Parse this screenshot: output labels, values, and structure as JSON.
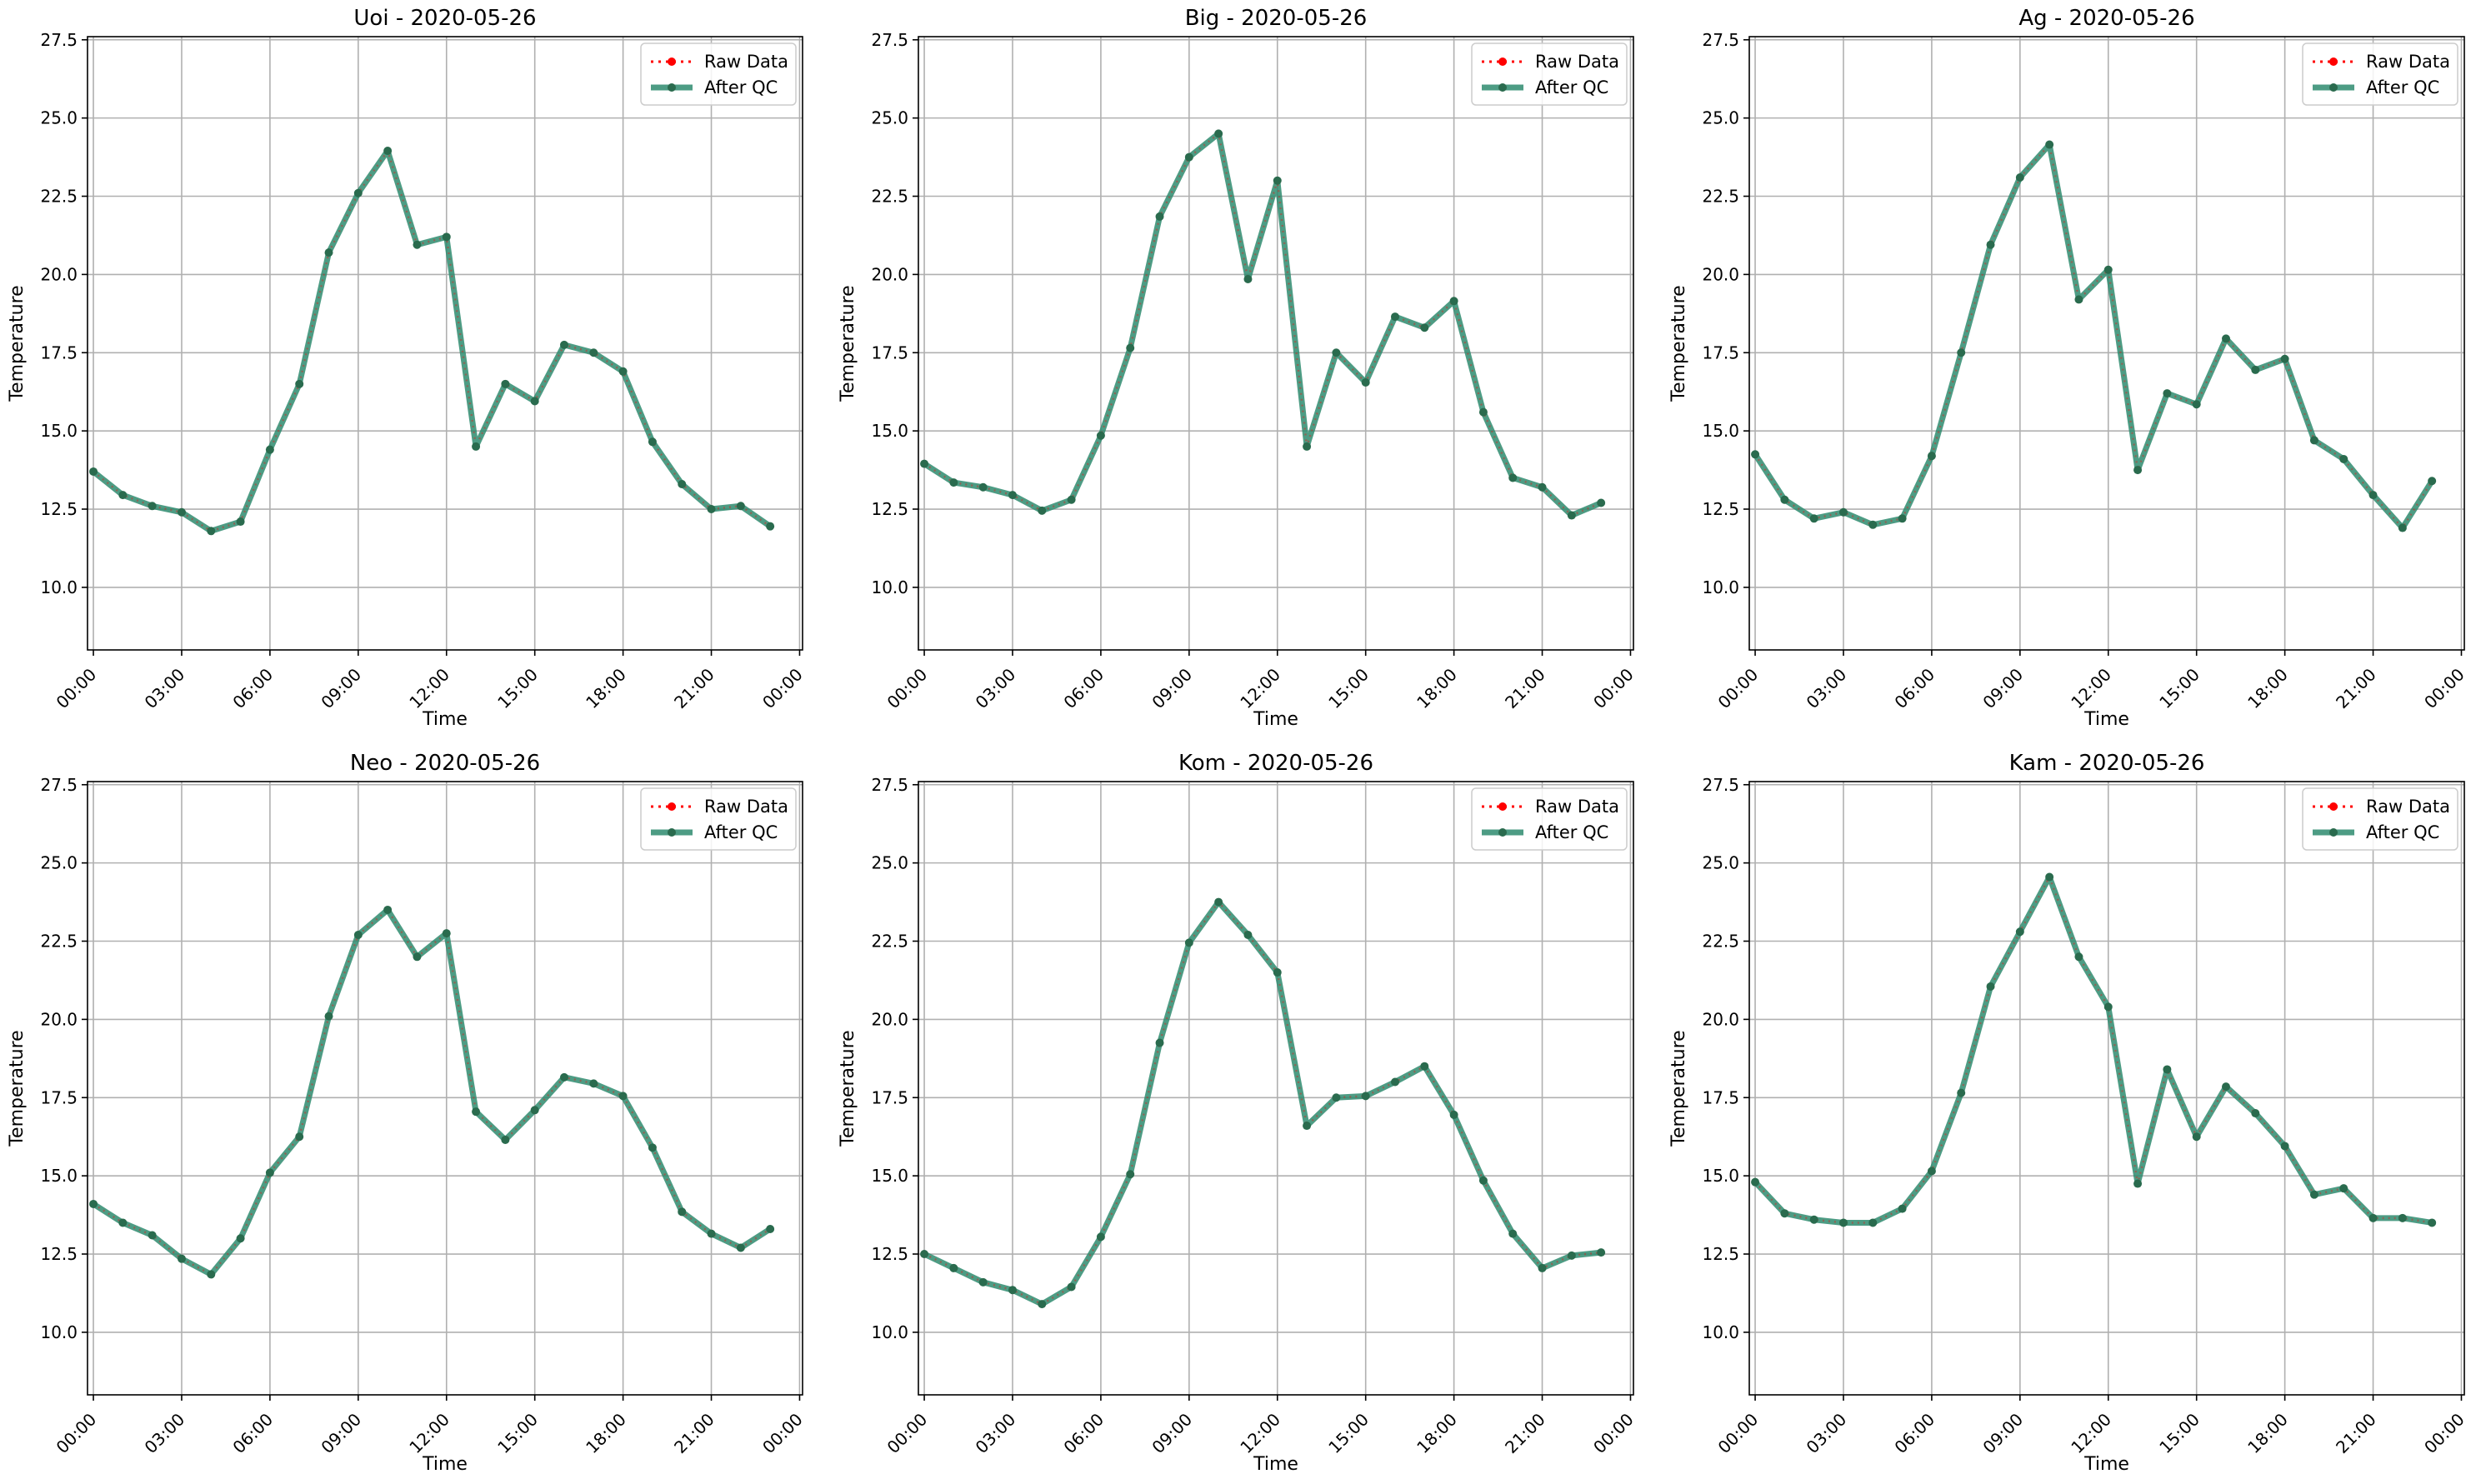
{
  "colors": {
    "raw": "#ff0000",
    "qc": "#2e8b6e",
    "qc_marker": "#2a6b4e",
    "grid": "#b0b0b0"
  },
  "chart_data": [
    {
      "type": "line",
      "title": "Uoi - 2020-05-26",
      "xlabel": "Time",
      "ylabel": "Temperature",
      "x_ticks": [
        "00:00",
        "03:00",
        "06:00",
        "09:00",
        "12:00",
        "15:00",
        "18:00",
        "21:00",
        "00:00"
      ],
      "x_tick_hours": [
        0,
        3,
        6,
        9,
        12,
        15,
        18,
        21,
        24
      ],
      "y_ticks": [
        "10.0",
        "12.5",
        "15.0",
        "17.5",
        "20.0",
        "22.5",
        "25.0",
        "27.5"
      ],
      "xlim_hours": [
        -0.2,
        24.1
      ],
      "ylim": [
        8.0,
        27.6
      ],
      "grid": true,
      "legend": "top-right",
      "x_hours": [
        0,
        1,
        2,
        3,
        4,
        5,
        6,
        7,
        8,
        9,
        10,
        11,
        12,
        13,
        14,
        15,
        16,
        17,
        18,
        19,
        20,
        21,
        22,
        23
      ],
      "series": [
        {
          "name": "Raw Data",
          "values": [
            13.7,
            12.95,
            12.6,
            12.4,
            11.8,
            12.1,
            14.4,
            16.5,
            20.7,
            22.6,
            23.95,
            20.95,
            21.2,
            14.5,
            16.5,
            15.95,
            17.75,
            17.5,
            16.9,
            14.65,
            13.3,
            12.5,
            12.6,
            11.95
          ]
        },
        {
          "name": "After QC",
          "values": [
            13.7,
            12.95,
            12.6,
            12.4,
            11.8,
            12.1,
            14.4,
            16.5,
            20.7,
            22.6,
            23.95,
            20.95,
            21.2,
            14.5,
            16.5,
            15.95,
            17.75,
            17.5,
            16.9,
            14.65,
            13.3,
            12.5,
            12.6,
            11.95
          ]
        }
      ]
    },
    {
      "type": "line",
      "title": "Big - 2020-05-26",
      "xlabel": "Time",
      "ylabel": "Temperature",
      "x_ticks": [
        "00:00",
        "03:00",
        "06:00",
        "09:00",
        "12:00",
        "15:00",
        "18:00",
        "21:00",
        "00:00"
      ],
      "x_tick_hours": [
        0,
        3,
        6,
        9,
        12,
        15,
        18,
        21,
        24
      ],
      "y_ticks": [
        "10.0",
        "12.5",
        "15.0",
        "17.5",
        "20.0",
        "22.5",
        "25.0",
        "27.5"
      ],
      "xlim_hours": [
        -0.2,
        24.1
      ],
      "ylim": [
        8.0,
        27.6
      ],
      "grid": true,
      "legend": "top-right",
      "x_hours": [
        0,
        1,
        2,
        3,
        4,
        5,
        6,
        7,
        8,
        9,
        10,
        11,
        12,
        13,
        14,
        15,
        16,
        17,
        18,
        19,
        20,
        21,
        22,
        23
      ],
      "series": [
        {
          "name": "Raw Data",
          "values": [
            13.95,
            13.35,
            13.2,
            12.95,
            12.45,
            12.8,
            14.85,
            17.65,
            21.85,
            23.75,
            24.5,
            19.85,
            23.0,
            14.5,
            17.5,
            16.55,
            18.65,
            18.3,
            19.15,
            15.6,
            13.5,
            13.2,
            12.3,
            12.7
          ]
        },
        {
          "name": "After QC",
          "values": [
            13.95,
            13.35,
            13.2,
            12.95,
            12.45,
            12.8,
            14.85,
            17.65,
            21.85,
            23.75,
            24.5,
            19.85,
            23.0,
            14.5,
            17.5,
            16.55,
            18.65,
            18.3,
            19.15,
            15.6,
            13.5,
            13.2,
            12.3,
            12.7
          ]
        }
      ]
    },
    {
      "type": "line",
      "title": "Ag - 2020-05-26",
      "xlabel": "Time",
      "ylabel": "Temperature",
      "x_ticks": [
        "00:00",
        "03:00",
        "06:00",
        "09:00",
        "12:00",
        "15:00",
        "18:00",
        "21:00",
        "00:00"
      ],
      "x_tick_hours": [
        0,
        3,
        6,
        9,
        12,
        15,
        18,
        21,
        24
      ],
      "y_ticks": [
        "10.0",
        "12.5",
        "15.0",
        "17.5",
        "20.0",
        "22.5",
        "25.0",
        "27.5"
      ],
      "xlim_hours": [
        -0.2,
        24.1
      ],
      "ylim": [
        8.0,
        27.6
      ],
      "grid": true,
      "legend": "top-right",
      "x_hours": [
        0,
        1,
        2,
        3,
        4,
        5,
        6,
        7,
        8,
        9,
        10,
        11,
        12,
        13,
        14,
        15,
        16,
        17,
        18,
        19,
        20,
        21,
        22,
        23
      ],
      "series": [
        {
          "name": "Raw Data",
          "values": [
            14.25,
            12.8,
            12.2,
            12.4,
            12.0,
            12.2,
            14.2,
            17.5,
            20.95,
            23.1,
            24.15,
            19.2,
            20.15,
            13.75,
            16.2,
            15.85,
            17.95,
            16.95,
            17.3,
            14.7,
            14.1,
            12.95,
            11.9,
            13.4
          ]
        },
        {
          "name": "After QC",
          "values": [
            14.25,
            12.8,
            12.2,
            12.4,
            12.0,
            12.2,
            14.2,
            17.5,
            20.95,
            23.1,
            24.15,
            19.2,
            20.15,
            13.75,
            16.2,
            15.85,
            17.95,
            16.95,
            17.3,
            14.7,
            14.1,
            12.95,
            11.9,
            13.4
          ]
        }
      ]
    },
    {
      "type": "line",
      "title": "Neo - 2020-05-26",
      "xlabel": "Time",
      "ylabel": "Temperature",
      "x_ticks": [
        "00:00",
        "03:00",
        "06:00",
        "09:00",
        "12:00",
        "15:00",
        "18:00",
        "21:00",
        "00:00"
      ],
      "x_tick_hours": [
        0,
        3,
        6,
        9,
        12,
        15,
        18,
        21,
        24
      ],
      "y_ticks": [
        "10.0",
        "12.5",
        "15.0",
        "17.5",
        "20.0",
        "22.5",
        "25.0",
        "27.5"
      ],
      "xlim_hours": [
        -0.2,
        24.1
      ],
      "ylim": [
        8.0,
        27.6
      ],
      "grid": true,
      "legend": "top-right",
      "x_hours": [
        0,
        1,
        2,
        3,
        4,
        5,
        6,
        7,
        8,
        9,
        10,
        11,
        12,
        13,
        14,
        15,
        16,
        17,
        18,
        19,
        20,
        21,
        22,
        23
      ],
      "series": [
        {
          "name": "Raw Data",
          "values": [
            14.1,
            13.5,
            13.1,
            12.35,
            11.85,
            13.0,
            15.1,
            16.25,
            20.1,
            22.7,
            23.5,
            22.0,
            22.75,
            17.05,
            16.15,
            17.1,
            18.15,
            17.95,
            17.55,
            15.9,
            13.85,
            13.15,
            12.7,
            13.3
          ]
        },
        {
          "name": "After QC",
          "values": [
            14.1,
            13.5,
            13.1,
            12.35,
            11.85,
            13.0,
            15.1,
            16.25,
            20.1,
            22.7,
            23.5,
            22.0,
            22.75,
            17.05,
            16.15,
            17.1,
            18.15,
            17.95,
            17.55,
            15.9,
            13.85,
            13.15,
            12.7,
            13.3
          ]
        }
      ]
    },
    {
      "type": "line",
      "title": "Kom - 2020-05-26",
      "xlabel": "Time",
      "ylabel": "Temperature",
      "x_ticks": [
        "00:00",
        "03:00",
        "06:00",
        "09:00",
        "12:00",
        "15:00",
        "18:00",
        "21:00",
        "00:00"
      ],
      "x_tick_hours": [
        0,
        3,
        6,
        9,
        12,
        15,
        18,
        21,
        24
      ],
      "y_ticks": [
        "10.0",
        "12.5",
        "15.0",
        "17.5",
        "20.0",
        "22.5",
        "25.0",
        "27.5"
      ],
      "xlim_hours": [
        -0.2,
        24.1
      ],
      "ylim": [
        8.0,
        27.6
      ],
      "grid": true,
      "legend": "top-right",
      "x_hours": [
        0,
        1,
        2,
        3,
        4,
        5,
        6,
        7,
        8,
        9,
        10,
        11,
        12,
        13,
        14,
        15,
        16,
        17,
        18,
        19,
        20,
        21,
        22,
        23
      ],
      "series": [
        {
          "name": "Raw Data",
          "values": [
            12.5,
            12.05,
            11.6,
            11.35,
            10.9,
            11.45,
            13.05,
            15.05,
            19.25,
            22.45,
            23.75,
            22.7,
            21.5,
            16.6,
            17.5,
            17.55,
            18.0,
            18.5,
            16.95,
            14.85,
            13.15,
            12.05,
            12.45,
            12.55
          ]
        },
        {
          "name": "After QC",
          "values": [
            12.5,
            12.05,
            11.6,
            11.35,
            10.9,
            11.45,
            13.05,
            15.05,
            19.25,
            22.45,
            23.75,
            22.7,
            21.5,
            16.6,
            17.5,
            17.55,
            18.0,
            18.5,
            16.95,
            14.85,
            13.15,
            12.05,
            12.45,
            12.55
          ]
        }
      ]
    },
    {
      "type": "line",
      "title": "Kam - 2020-05-26",
      "xlabel": "Time",
      "ylabel": "Temperature",
      "x_ticks": [
        "00:00",
        "03:00",
        "06:00",
        "09:00",
        "12:00",
        "15:00",
        "18:00",
        "21:00",
        "00:00"
      ],
      "x_tick_hours": [
        0,
        3,
        6,
        9,
        12,
        15,
        18,
        21,
        24
      ],
      "y_ticks": [
        "10.0",
        "12.5",
        "15.0",
        "17.5",
        "20.0",
        "22.5",
        "25.0",
        "27.5"
      ],
      "xlim_hours": [
        -0.2,
        24.1
      ],
      "ylim": [
        8.0,
        27.6
      ],
      "grid": true,
      "legend": "top-right",
      "x_hours": [
        0,
        1,
        2,
        3,
        4,
        5,
        6,
        7,
        8,
        9,
        10,
        11,
        12,
        13,
        14,
        15,
        16,
        17,
        18,
        19,
        20,
        21,
        22,
        23
      ],
      "series": [
        {
          "name": "Raw Data",
          "values": [
            14.8,
            13.8,
            13.6,
            13.5,
            13.5,
            13.95,
            15.15,
            17.65,
            21.05,
            22.8,
            24.55,
            22.0,
            20.4,
            14.75,
            18.4,
            16.25,
            17.85,
            17.0,
            15.95,
            14.4,
            14.6,
            13.65,
            13.65,
            13.5
          ]
        },
        {
          "name": "After QC",
          "values": [
            14.8,
            13.8,
            13.6,
            13.5,
            13.5,
            13.95,
            15.15,
            17.65,
            21.05,
            22.8,
            24.55,
            22.0,
            20.4,
            14.75,
            18.4,
            16.25,
            17.85,
            17.0,
            15.95,
            14.4,
            14.6,
            13.65,
            13.65,
            13.5
          ]
        }
      ]
    }
  ]
}
